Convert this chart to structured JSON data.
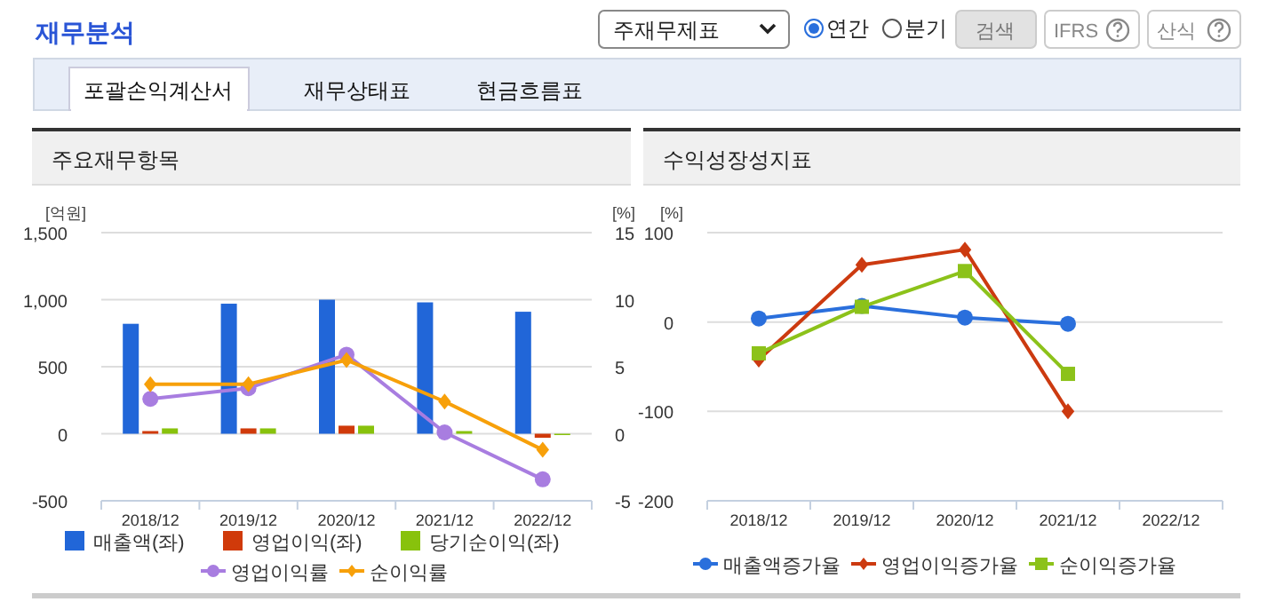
{
  "chart_data": [
    {
      "type": "other",
      "title": "재무분석",
      "annotations": [
        "주재무제표",
        "연간",
        "분기",
        "검색",
        "IFRS",
        "산식",
        "포괄손익계산서",
        "재무상태표",
        "현금흐름표"
      ]
    },
    {
      "type": "bar",
      "title": "주요재무항목",
      "ylabel": "[억원]",
      "y2label": "[%]",
      "categories": [
        "2018/12",
        "2019/12",
        "2020/12",
        "2021/12",
        "2022/12"
      ],
      "ylim": [
        -500,
        1500
      ],
      "yticks": [
        -500,
        0,
        500,
        {
          "value": 1000,
          "label": "1,000"
        },
        {
          "value": 1500,
          "label": "1,500"
        }
      ],
      "y2lim": [
        -5,
        15
      ],
      "y2ticks": [
        -5,
        0,
        5,
        10,
        15
      ],
      "grid": "y",
      "legend": "bottom",
      "series": [
        {
          "name": "매출액(좌)",
          "color": "#2166d8",
          "values": [
            820,
            970,
            1000,
            980,
            910
          ]
        },
        {
          "name": "영업이익(좌)",
          "color": "#d03a0a",
          "values": [
            20,
            40,
            60,
            0,
            -30
          ]
        },
        {
          "name": "당기순이익(좌)",
          "color": "#88c20c",
          "values": [
            40,
            40,
            60,
            20,
            -10
          ]
        },
        {
          "name": "영업이익률",
          "type": "line",
          "axis": "y2",
          "marker": "circle",
          "color": "#a87de0",
          "values": [
            2.6,
            3.4,
            5.9,
            0.1,
            -3.4
          ]
        },
        {
          "name": "순이익률",
          "type": "line",
          "axis": "y2",
          "marker": "diamond",
          "color": "#f7a00a",
          "values": [
            3.7,
            3.7,
            5.5,
            2.4,
            -1.2
          ]
        }
      ]
    },
    {
      "type": "line",
      "title": "수익성장성지표",
      "ylabel": "[%]",
      "categories": [
        "2018/12",
        "2019/12",
        "2020/12",
        "2021/12",
        "2022/12"
      ],
      "ylim": [
        -200,
        100
      ],
      "yticks": [
        -200,
        -100,
        0,
        100
      ],
      "grid": "y",
      "legend": "bottom",
      "series": [
        {
          "name": "매출액증가율",
          "marker": "circle",
          "color": "#2a6fdc",
          "values": [
            4,
            18,
            5,
            -2,
            null
          ]
        },
        {
          "name": "영업이익증가율",
          "marker": "diamond",
          "color": "#cc3a10",
          "values": [
            -42,
            64,
            81,
            -100,
            null
          ]
        },
        {
          "name": "순이익증가율",
          "marker": "square",
          "color": "#8cc21a",
          "values": [
            -35,
            17,
            57,
            -58,
            null
          ]
        }
      ]
    }
  ]
}
